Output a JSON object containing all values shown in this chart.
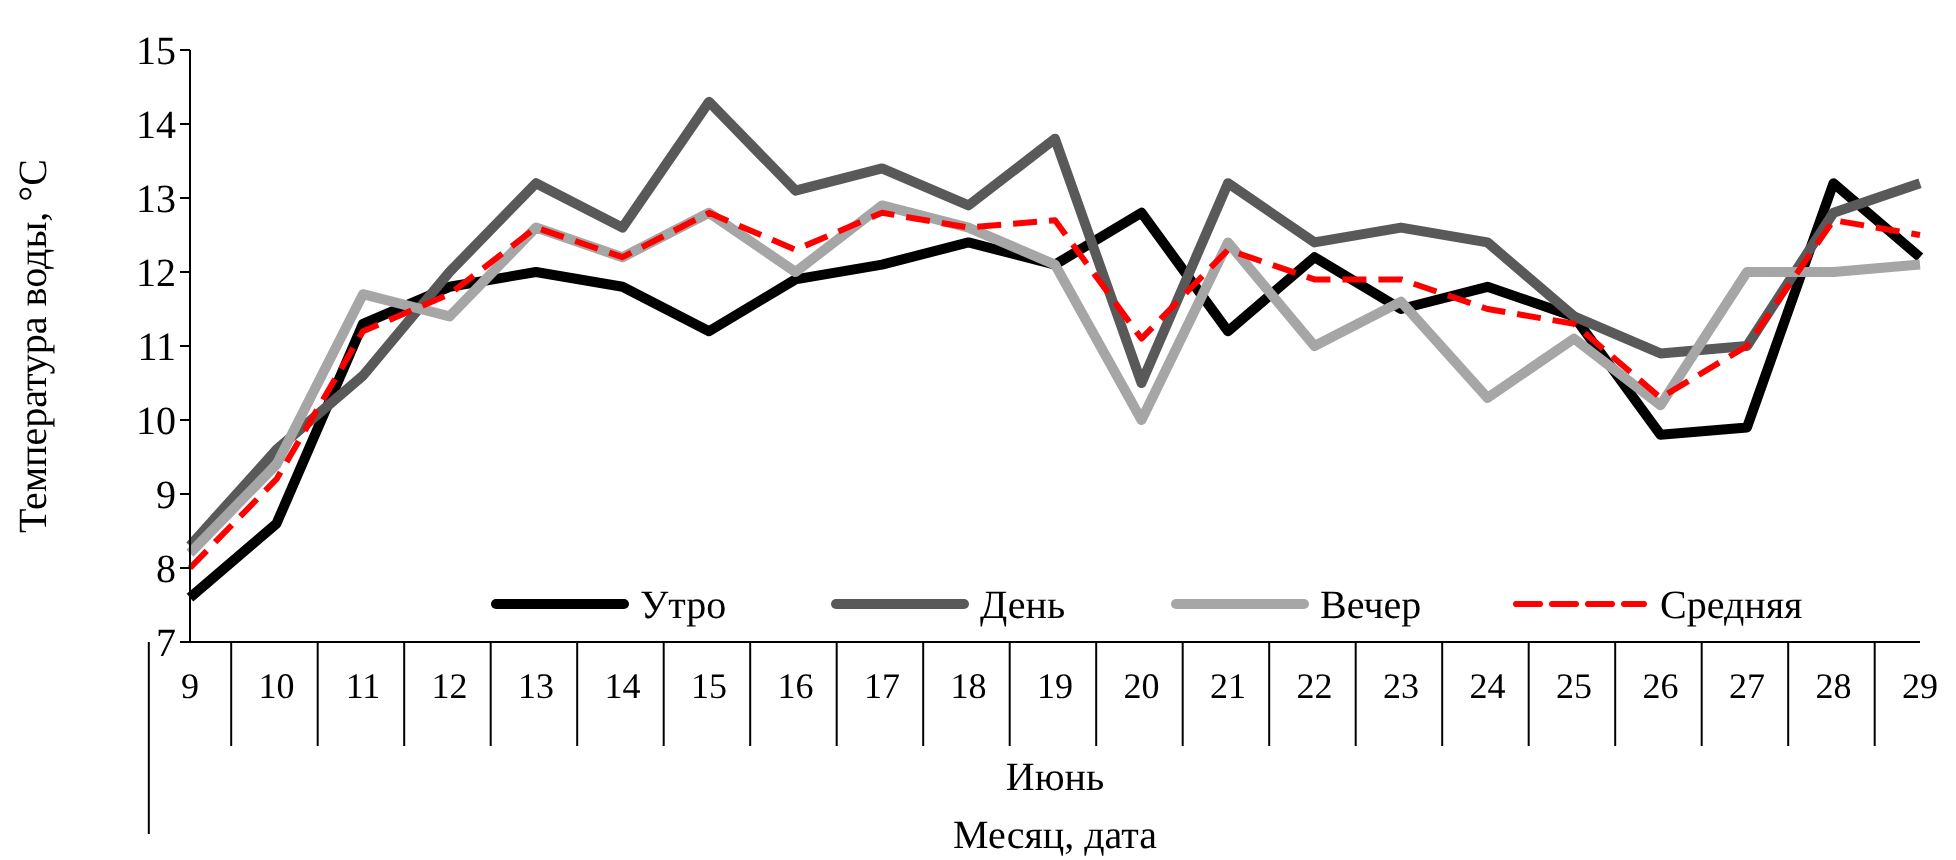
{
  "chart_data": {
    "type": "line",
    "xlabel": "Месяц,  дата",
    "ylabel": "Температура воды, °С",
    "annotations": [
      "Июнь"
    ],
    "categories": [
      "9",
      "10",
      "11",
      "12",
      "13",
      "14",
      "15",
      "16",
      "17",
      "18",
      "19",
      "20",
      "21",
      "22",
      "23",
      "24",
      "25",
      "26",
      "27",
      "28",
      "29"
    ],
    "series": [
      {
        "name": "Утро",
        "color": "#000000",
        "values": [
          7.6,
          8.6,
          11.3,
          11.8,
          12.0,
          11.8,
          11.2,
          11.9,
          12.1,
          12.4,
          12.1,
          12.8,
          11.2,
          12.2,
          11.5,
          11.8,
          11.4,
          9.8,
          9.9,
          13.2,
          12.2
        ]
      },
      {
        "name": "День",
        "color": "#595959",
        "values": [
          8.3,
          9.6,
          10.6,
          12.0,
          13.2,
          12.6,
          14.3,
          13.1,
          13.4,
          12.9,
          13.8,
          10.5,
          13.2,
          12.4,
          12.6,
          12.4,
          11.4,
          10.9,
          11.0,
          12.8,
          13.2
        ]
      },
      {
        "name": "Вечер",
        "color": "#a6a6a6",
        "values": [
          8.2,
          9.4,
          11.7,
          11.4,
          12.6,
          12.2,
          12.8,
          12.0,
          12.9,
          12.6,
          12.1,
          10.0,
          12.4,
          11.0,
          11.6,
          10.3,
          11.1,
          10.2,
          12.0,
          12.0,
          12.1
        ]
      },
      {
        "name": "Средняя",
        "color": "#ff0000",
        "line_style": "dashed",
        "values": [
          8.0,
          9.2,
          11.2,
          11.7,
          12.6,
          12.2,
          12.8,
          12.3,
          12.8,
          12.6,
          12.7,
          11.1,
          12.3,
          11.9,
          11.9,
          11.5,
          11.3,
          10.3,
          11.0,
          12.7,
          12.5
        ]
      }
    ],
    "ylim": [
      7,
      15
    ],
    "yticks": [
      7,
      8,
      9,
      10,
      11,
      12,
      13,
      14,
      15
    ],
    "grid": false,
    "legend": "bottom",
    "marker": "none"
  }
}
